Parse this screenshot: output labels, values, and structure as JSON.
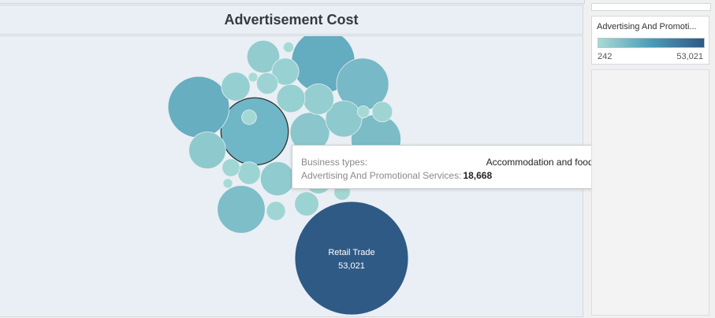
{
  "dashboard": {
    "title": "Advertisement Cost"
  },
  "legend": {
    "title": "Advertising And Promoti...",
    "min_label": "242",
    "max_label": "53,021",
    "colors": [
      "#a7dbd6",
      "#4c9bb8",
      "#2c5a85"
    ]
  },
  "tooltip": {
    "row1_key": "Business types:",
    "row1_value": "Accommodation and food services",
    "row2_key": "Advertising And Promotional Services:",
    "row2_value": "18,668"
  },
  "chart_data": {
    "type": "bubble",
    "title": "Advertisement Cost",
    "color_measure": "Advertising And Promotional Services",
    "color_range": [
      242,
      53021
    ],
    "bubbles": [
      {
        "category": "Retail Trade",
        "value": 53021,
        "label": "Retail Trade",
        "value_label": "53,021",
        "highlighted": false
      },
      {
        "category": "Accommodation and food services",
        "value": 18668,
        "label": "",
        "value_label": "",
        "highlighted": true
      },
      {
        "category": "",
        "value": 16500,
        "label": "",
        "value_label": "",
        "highlighted": false
      },
      {
        "category": "",
        "value": 15500,
        "label": "",
        "value_label": "",
        "highlighted": false
      },
      {
        "category": "",
        "value": 11200,
        "label": "",
        "value_label": "",
        "highlighted": false
      },
      {
        "category": "",
        "value": 10200,
        "label": "",
        "value_label": "",
        "highlighted": false
      },
      {
        "category": "",
        "value": 9400,
        "label": "",
        "value_label": "",
        "highlighted": false
      },
      {
        "category": "",
        "value": 6400,
        "label": "",
        "value_label": "",
        "highlighted": false
      },
      {
        "category": "",
        "value": 5600,
        "label": "",
        "value_label": "",
        "highlighted": false
      },
      {
        "category": "",
        "value": 5400,
        "label": "",
        "value_label": "",
        "highlighted": false
      },
      {
        "category": "",
        "value": 4800,
        "label": "",
        "value_label": "",
        "highlighted": false
      },
      {
        "category": "",
        "value": 4400,
        "label": "",
        "value_label": "",
        "highlighted": false
      },
      {
        "category": "",
        "value": 3900,
        "label": "",
        "value_label": "",
        "highlighted": false
      },
      {
        "category": "",
        "value": 3400,
        "label": "",
        "value_label": "",
        "highlighted": false
      },
      {
        "category": "",
        "value": 3300,
        "label": "",
        "value_label": "",
        "highlighted": false
      },
      {
        "category": "",
        "value": 3000,
        "label": "",
        "value_label": "",
        "highlighted": false
      },
      {
        "category": "",
        "value": 2700,
        "label": "",
        "value_label": "",
        "highlighted": false
      },
      {
        "category": "",
        "value": 2400,
        "label": "",
        "value_label": "",
        "highlighted": false
      },
      {
        "category": "",
        "value": 2100,
        "label": "",
        "value_label": "",
        "highlighted": false
      },
      {
        "category": "",
        "value": 1900,
        "label": "",
        "value_label": "",
        "highlighted": false
      },
      {
        "category": "",
        "value": 1700,
        "label": "",
        "value_label": "",
        "highlighted": false
      },
      {
        "category": "",
        "value": 1500,
        "label": "",
        "value_label": "",
        "highlighted": false
      },
      {
        "category": "",
        "value": 1300,
        "label": "",
        "value_label": "",
        "highlighted": false
      },
      {
        "category": "",
        "value": 1100,
        "label": "",
        "value_label": "",
        "highlighted": false
      },
      {
        "category": "",
        "value": 900,
        "label": "",
        "value_label": "",
        "highlighted": false
      },
      {
        "category": "",
        "value": 750,
        "label": "",
        "value_label": "",
        "highlighted": false
      },
      {
        "category": "",
        "value": 600,
        "label": "",
        "value_label": "",
        "highlighted": false
      },
      {
        "category": "",
        "value": 450,
        "label": "",
        "value_label": "",
        "highlighted": false
      },
      {
        "category": "",
        "value": 350,
        "label": "",
        "value_label": "",
        "highlighted": false
      },
      {
        "category": "",
        "value": 242,
        "label": "",
        "value_label": "",
        "highlighted": false
      }
    ]
  }
}
